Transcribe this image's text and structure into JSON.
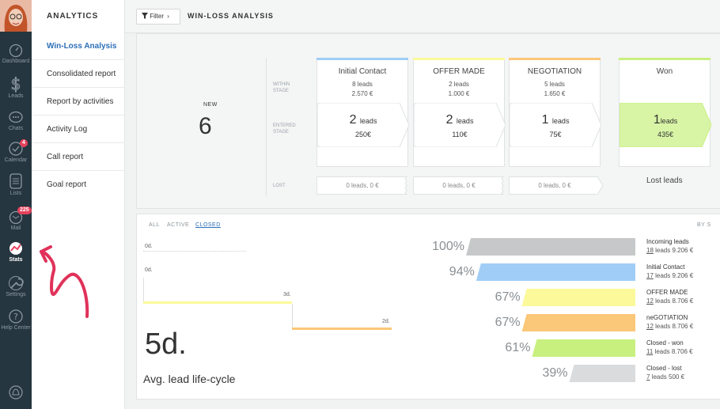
{
  "sidebar": {
    "items": [
      {
        "label": "Dashboard",
        "icon": "dashboard-icon"
      },
      {
        "label": "Leads",
        "icon": "dollar-icon"
      },
      {
        "label": "Chats",
        "icon": "chat-icon"
      },
      {
        "label": "Calendar",
        "icon": "calendar-check-icon",
        "badge": "4"
      },
      {
        "label": "Lists",
        "icon": "list-icon"
      },
      {
        "label": "Mail",
        "icon": "mail-icon",
        "badge": "225"
      },
      {
        "label": "Stats",
        "icon": "stats-icon"
      },
      {
        "label": "Settings",
        "icon": "wrench-icon"
      },
      {
        "label": "Help Center",
        "icon": "help-icon"
      }
    ]
  },
  "menu": {
    "title": "ANALYTICS",
    "items": [
      "Win-Loss Analysis",
      "Consolidated report",
      "Report by activities",
      "Activity Log",
      "Call report",
      "Goal report"
    ]
  },
  "topbar": {
    "filter_label": "Filter",
    "title": "WIN-LOSS ANALYSIS"
  },
  "funnel": {
    "new_label": "NEW",
    "new_value": "6",
    "row_labels": {
      "within": "WITHIN\nSTAGE",
      "entered": "ENTERED\nSTAGE",
      "lost": "LOST"
    },
    "stages": [
      {
        "name": "Initial Contact",
        "within_leads": "8 leads",
        "within_amount": "2.570 €",
        "entered_count": "2",
        "entered_unit": "leads",
        "entered_amount": "250€",
        "lost": "0 leads, 0 €",
        "color": "#9fcdf6"
      },
      {
        "name": "OFFER MADE",
        "within_leads": "2 leads",
        "within_amount": "1.000 €",
        "entered_count": "2",
        "entered_unit": "leads",
        "entered_amount": "110€",
        "lost": "0 leads, 0 €",
        "color": "#fbf99a"
      },
      {
        "name": "NEGOTIATION",
        "within_leads": "5 leads",
        "within_amount": "1.650 €",
        "entered_count": "1",
        "entered_unit": "leads",
        "entered_amount": "75€",
        "lost": "0 leads, 0 €",
        "color": "#fbc778"
      }
    ],
    "won": {
      "name": "Won",
      "count": "1",
      "unit": "leads",
      "amount": "435€",
      "color": "#c8f07f"
    },
    "lost_label": "Lost leads"
  },
  "duration": {
    "tabs": [
      "ALL",
      "ACTIVE",
      "CLOSED"
    ],
    "active_tab": "CLOSED",
    "sort_label": "BY S",
    "durations": [
      "0d.",
      "0d.",
      "3d.",
      "2d."
    ],
    "avg_value": "5d.",
    "avg_label": "Avg. lead life-cycle",
    "rows": [
      {
        "pct": "100%",
        "value": 100,
        "name": "Incoming leads",
        "count": "18",
        "rest": "leads 9.206 €",
        "color": "#c6c8c9"
      },
      {
        "pct": "94%",
        "value": 94,
        "name": "Initial Contact",
        "count": "17",
        "rest": "leads 9.206 €",
        "color": "#9fcdf6"
      },
      {
        "pct": "67%",
        "value": 67,
        "name": "OFFER MADE",
        "count": "12",
        "rest": "leads 8.706 €",
        "color": "#fbf99a"
      },
      {
        "pct": "67%",
        "value": 67,
        "name": "neGOTIATION",
        "count": "12",
        "rest": "leads 8.706 €",
        "color": "#fbc778"
      },
      {
        "pct": "61%",
        "value": 61,
        "name": "Closed - won",
        "count": "11",
        "rest": "leads 8.706 €",
        "color": "#c8f07f"
      },
      {
        "pct": "39%",
        "value": 39,
        "name": "Closed - lost",
        "count": "7",
        "rest": "leads 500 €",
        "color": "#d9dbdc"
      }
    ]
  },
  "colors": {
    "rail_bg": "#263640",
    "accent": "#2c6fb7",
    "badge": "#e6415d",
    "annotation_arrow": "#e0325a"
  }
}
